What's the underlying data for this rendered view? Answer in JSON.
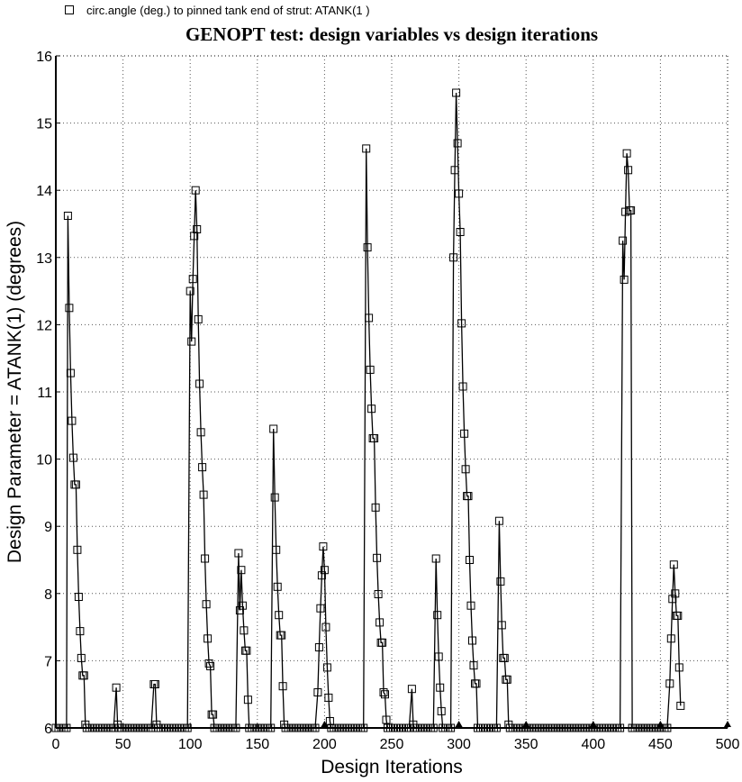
{
  "chart_data": {
    "type": "line",
    "title": "GENOPT test: design variables vs design iterations",
    "xlabel": "Design Iterations",
    "ylabel": "Design Parameter = ATANK(1) (degrees)",
    "xlim": [
      0,
      500
    ],
    "ylim": [
      6,
      16
    ],
    "xticks": [
      0,
      50,
      100,
      150,
      200,
      250,
      300,
      350,
      400,
      450,
      500
    ],
    "yticks": [
      6,
      7,
      8,
      9,
      10,
      11,
      12,
      13,
      14,
      15,
      16
    ],
    "grid": true,
    "legend_position": "top-left",
    "series": [
      {
        "name": "circ.angle (deg.) to pinned tank end of strut: ATANK(1 )",
        "marker": "open-square",
        "color": "#000000",
        "points": [
          [
            0,
            6
          ],
          [
            2,
            6
          ],
          [
            4,
            6
          ],
          [
            6,
            6
          ],
          [
            8,
            6
          ],
          [
            9,
            13.62
          ],
          [
            10,
            12.25
          ],
          [
            11,
            11.28
          ],
          [
            12,
            10.57
          ],
          [
            13,
            10.02
          ],
          [
            14,
            9.62
          ],
          [
            15,
            9.62
          ],
          [
            16,
            8.65
          ],
          [
            17,
            7.95
          ],
          [
            18,
            7.44
          ],
          [
            19,
            7.04
          ],
          [
            20,
            6.78
          ],
          [
            21,
            6.78
          ],
          [
            22,
            6.05
          ],
          [
            23,
            6
          ],
          [
            25,
            6
          ],
          [
            27,
            6
          ],
          [
            29,
            6
          ],
          [
            31,
            6
          ],
          [
            33,
            6
          ],
          [
            35,
            6
          ],
          [
            37,
            6
          ],
          [
            39,
            6
          ],
          [
            41,
            6
          ],
          [
            43,
            6
          ],
          [
            45,
            6.6
          ],
          [
            46,
            6.05
          ],
          [
            47,
            6
          ],
          [
            49,
            6
          ],
          [
            51,
            6
          ],
          [
            53,
            6
          ],
          [
            55,
            6
          ],
          [
            57,
            6
          ],
          [
            59,
            6
          ],
          [
            61,
            6
          ],
          [
            63,
            6
          ],
          [
            65,
            6
          ],
          [
            67,
            6
          ],
          [
            69,
            6
          ],
          [
            71,
            6
          ],
          [
            73,
            6.65
          ],
          [
            74,
            6.65
          ],
          [
            75,
            6.05
          ],
          [
            76,
            6
          ],
          [
            78,
            6
          ],
          [
            80,
            6
          ],
          [
            82,
            6
          ],
          [
            84,
            6
          ],
          [
            86,
            6
          ],
          [
            88,
            6
          ],
          [
            90,
            6
          ],
          [
            92,
            6
          ],
          [
            94,
            6
          ],
          [
            96,
            6
          ],
          [
            98,
            6
          ],
          [
            100,
            12.5
          ],
          [
            101,
            11.75
          ],
          [
            102,
            12.68
          ],
          [
            103,
            13.32
          ],
          [
            104,
            14.0
          ],
          [
            105,
            13.42
          ],
          [
            106,
            12.08
          ],
          [
            107,
            11.12
          ],
          [
            108,
            10.4
          ],
          [
            109,
            9.88
          ],
          [
            110,
            9.47
          ],
          [
            111,
            8.52
          ],
          [
            112,
            7.84
          ],
          [
            113,
            7.33
          ],
          [
            114,
            6.96
          ],
          [
            115,
            6.92
          ],
          [
            116,
            6.2
          ],
          [
            117,
            6.2
          ],
          [
            118,
            6
          ],
          [
            120,
            6
          ],
          [
            122,
            6
          ],
          [
            124,
            6
          ],
          [
            126,
            6
          ],
          [
            128,
            6
          ],
          [
            130,
            6
          ],
          [
            132,
            6
          ],
          [
            134,
            6
          ],
          [
            136,
            8.6
          ],
          [
            137,
            7.75
          ],
          [
            138,
            8.35
          ],
          [
            139,
            7.82
          ],
          [
            140,
            7.45
          ],
          [
            141,
            7.15
          ],
          [
            142,
            7.15
          ],
          [
            143,
            6.42
          ],
          [
            144,
            6
          ],
          [
            146,
            6
          ],
          [
            148,
            6
          ],
          [
            150,
            6
          ],
          [
            152,
            6
          ],
          [
            154,
            6
          ],
          [
            156,
            6
          ],
          [
            158,
            6
          ],
          [
            160,
            6
          ],
          [
            162,
            10.45
          ],
          [
            163,
            9.43
          ],
          [
            164,
            8.65
          ],
          [
            165,
            8.1
          ],
          [
            166,
            7.68
          ],
          [
            167,
            7.38
          ],
          [
            168,
            7.38
          ],
          [
            169,
            6.62
          ],
          [
            170,
            6.05
          ],
          [
            171,
            6
          ],
          [
            173,
            6
          ],
          [
            175,
            6
          ],
          [
            177,
            6
          ],
          [
            179,
            6
          ],
          [
            181,
            6
          ],
          [
            183,
            6
          ],
          [
            185,
            6
          ],
          [
            187,
            6
          ],
          [
            189,
            6
          ],
          [
            191,
            6
          ],
          [
            193,
            6
          ],
          [
            195,
            6.53
          ],
          [
            196,
            7.2
          ],
          [
            197,
            7.78
          ],
          [
            198,
            8.27
          ],
          [
            199,
            8.7
          ],
          [
            200,
            8.35
          ],
          [
            201,
            7.5
          ],
          [
            202,
            6.9
          ],
          [
            203,
            6.45
          ],
          [
            204,
            6.1
          ],
          [
            205,
            6
          ],
          [
            207,
            6
          ],
          [
            209,
            6
          ],
          [
            211,
            6
          ],
          [
            213,
            6
          ],
          [
            215,
            6
          ],
          [
            217,
            6
          ],
          [
            219,
            6
          ],
          [
            221,
            6
          ],
          [
            223,
            6
          ],
          [
            225,
            6
          ],
          [
            227,
            6
          ],
          [
            229,
            6
          ],
          [
            231,
            14.62
          ],
          [
            232,
            13.15
          ],
          [
            233,
            12.1
          ],
          [
            234,
            11.33
          ],
          [
            235,
            10.75
          ],
          [
            236,
            10.31
          ],
          [
            237,
            10.31
          ],
          [
            238,
            9.28
          ],
          [
            239,
            8.53
          ],
          [
            240,
            7.99
          ],
          [
            241,
            7.57
          ],
          [
            242,
            7.27
          ],
          [
            243,
            7.27
          ],
          [
            244,
            6.53
          ],
          [
            245,
            6.5
          ],
          [
            246,
            6.12
          ],
          [
            247,
            6
          ],
          [
            249,
            6
          ],
          [
            251,
            6
          ],
          [
            253,
            6
          ],
          [
            255,
            6
          ],
          [
            257,
            6
          ],
          [
            259,
            6
          ],
          [
            261,
            6
          ],
          [
            263,
            6
          ],
          [
            265,
            6.58
          ],
          [
            266,
            6.05
          ],
          [
            267,
            6
          ],
          [
            269,
            6
          ],
          [
            271,
            6
          ],
          [
            273,
            6
          ],
          [
            275,
            6
          ],
          [
            277,
            6
          ],
          [
            279,
            6
          ],
          [
            281,
            6
          ],
          [
            283,
            8.52
          ],
          [
            284,
            7.68
          ],
          [
            285,
            7.06
          ],
          [
            286,
            6.6
          ],
          [
            287,
            6.25
          ],
          [
            288,
            6
          ],
          [
            290,
            6
          ],
          [
            292,
            6
          ],
          [
            294,
            6
          ],
          [
            296,
            13.0
          ],
          [
            297,
            14.3
          ],
          [
            298,
            15.45
          ],
          [
            299,
            14.7
          ],
          [
            300,
            13.95
          ],
          [
            301,
            13.38
          ],
          [
            302,
            12.02
          ],
          [
            303,
            11.08
          ],
          [
            304,
            10.38
          ],
          [
            305,
            9.85
          ],
          [
            306,
            9.45
          ],
          [
            307,
            9.45
          ],
          [
            308,
            8.5
          ],
          [
            309,
            7.82
          ],
          [
            310,
            7.3
          ],
          [
            311,
            6.93
          ],
          [
            312,
            6.66
          ],
          [
            313,
            6.66
          ],
          [
            314,
            6
          ],
          [
            316,
            6
          ],
          [
            318,
            6
          ],
          [
            320,
            6
          ],
          [
            322,
            6
          ],
          [
            324,
            6
          ],
          [
            326,
            6
          ],
          [
            328,
            6
          ],
          [
            330,
            9.08
          ],
          [
            331,
            8.18
          ],
          [
            332,
            7.53
          ],
          [
            333,
            7.04
          ],
          [
            334,
            7.04
          ],
          [
            335,
            6.72
          ],
          [
            336,
            6.72
          ],
          [
            337,
            6.05
          ],
          [
            338,
            6
          ],
          [
            340,
            6
          ],
          [
            342,
            6
          ],
          [
            344,
            6
          ],
          [
            346,
            6
          ],
          [
            348,
            6
          ],
          [
            350,
            6
          ],
          [
            352,
            6
          ],
          [
            354,
            6
          ],
          [
            356,
            6
          ],
          [
            358,
            6
          ],
          [
            360,
            6
          ],
          [
            362,
            6
          ],
          [
            364,
            6
          ],
          [
            366,
            6
          ],
          [
            368,
            6
          ],
          [
            370,
            6
          ],
          [
            372,
            6
          ],
          [
            374,
            6
          ],
          [
            376,
            6
          ],
          [
            378,
            6
          ],
          [
            380,
            6
          ],
          [
            382,
            6
          ],
          [
            384,
            6
          ],
          [
            386,
            6
          ],
          [
            388,
            6
          ],
          [
            390,
            6
          ],
          [
            392,
            6
          ],
          [
            394,
            6
          ],
          [
            396,
            6
          ],
          [
            398,
            6
          ],
          [
            400,
            6
          ],
          [
            402,
            6
          ],
          [
            404,
            6
          ],
          [
            406,
            6
          ],
          [
            408,
            6
          ],
          [
            410,
            6
          ],
          [
            412,
            6
          ],
          [
            414,
            6
          ],
          [
            416,
            6
          ],
          [
            418,
            6
          ],
          [
            420,
            6
          ],
          [
            422,
            13.25
          ],
          [
            423,
            12.67
          ],
          [
            424,
            13.68
          ],
          [
            425,
            14.55
          ],
          [
            426,
            14.3
          ],
          [
            427,
            13.7
          ],
          [
            428,
            13.7
          ],
          [
            429,
            6
          ],
          [
            431,
            6
          ],
          [
            433,
            6
          ],
          [
            435,
            6
          ],
          [
            437,
            6
          ],
          [
            439,
            6
          ],
          [
            441,
            6
          ],
          [
            443,
            6
          ],
          [
            445,
            6
          ],
          [
            447,
            6
          ],
          [
            449,
            6
          ],
          [
            451,
            6
          ],
          [
            453,
            6
          ],
          [
            455,
            6
          ],
          [
            457,
            6.66
          ],
          [
            458,
            7.33
          ],
          [
            459,
            7.92
          ],
          [
            460,
            8.43
          ],
          [
            461,
            8.0
          ],
          [
            462,
            7.67
          ],
          [
            463,
            7.67
          ],
          [
            464,
            6.9
          ],
          [
            465,
            6.33
          ]
        ],
        "filled_markers_on_baseline": [
          200,
          300,
          350,
          400,
          450,
          500
        ]
      }
    ]
  }
}
